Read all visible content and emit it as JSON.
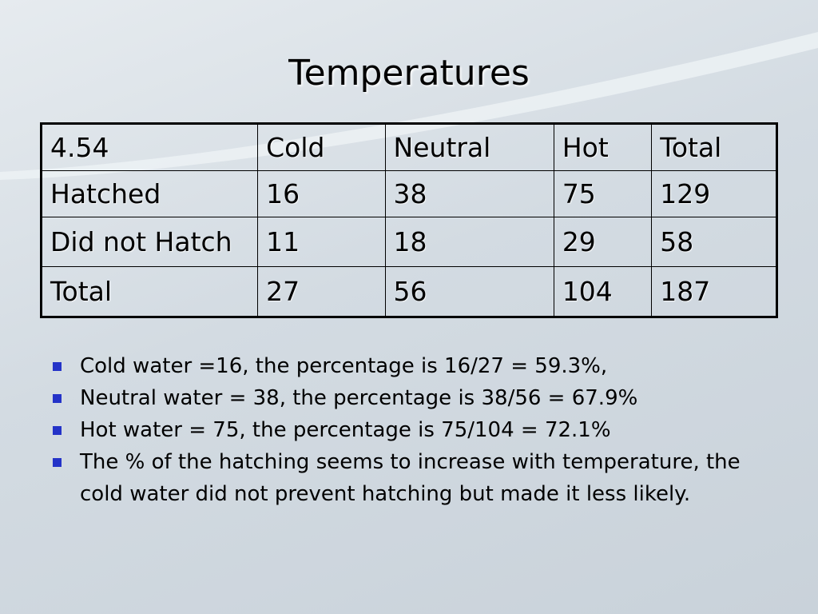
{
  "header": {
    "title": "Temperatures"
  },
  "table": {
    "rows": [
      [
        "4.54",
        "Cold",
        "Neutral",
        "Hot",
        "Total"
      ],
      [
        "Hatched",
        "16",
        "38",
        "75",
        "129"
      ],
      [
        "Did not Hatch",
        "11",
        "18",
        "29",
        "58"
      ],
      [
        "Total",
        "27",
        "56",
        "104",
        "187"
      ]
    ]
  },
  "bullets": [
    "Cold water =16, the percentage is 16/27 = 59.3%,",
    "Neutral water = 38, the percentage is 38/56 = 67.9%",
    "Hot water = 75, the percentage is 75/104 = 72.1%",
    "The % of the hatching seems to increase with temperature, the cold water did not prevent hatching but made it less likely."
  ]
}
